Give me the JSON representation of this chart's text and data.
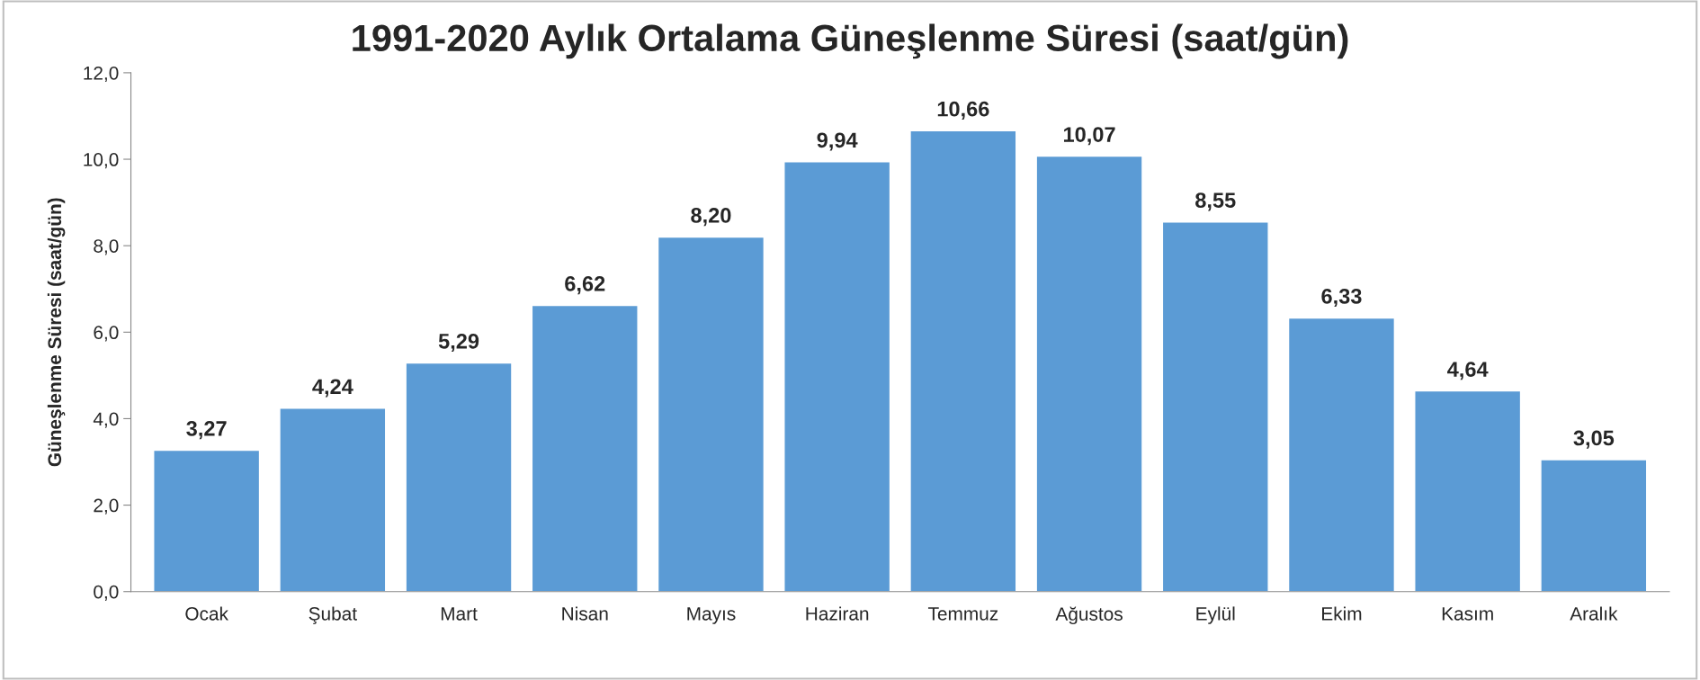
{
  "chart_data": {
    "type": "bar",
    "title": "1991-2020 Aylık Ortalama Güneşlenme Süresi (saat/gün)",
    "ylabel": "Güneşlenme Süresi (saat/gün)",
    "categories": [
      "Ocak",
      "Şubat",
      "Mart",
      "Nisan",
      "Mayıs",
      "Haziran",
      "Temmuz",
      "Ağustos",
      "Eylül",
      "Ekim",
      "Kasım",
      "Aralık"
    ],
    "values": [
      3.27,
      4.24,
      5.29,
      6.62,
      8.2,
      9.94,
      10.66,
      10.07,
      8.55,
      6.33,
      4.64,
      3.05
    ],
    "value_labels": [
      "3,27",
      "4,24",
      "5,29",
      "6,62",
      "8,20",
      "9,94",
      "10,66",
      "10,07",
      "8,55",
      "6,33",
      "4,64",
      "3,05"
    ],
    "color": "#5b9bd5",
    "ylim": [
      0,
      12
    ],
    "yticks": [
      {
        "value": 0,
        "label": "0,0"
      },
      {
        "value": 2,
        "label": "2,0"
      },
      {
        "value": 4,
        "label": "4,0"
      },
      {
        "value": 6,
        "label": "6,0"
      },
      {
        "value": 8,
        "label": "8,0"
      },
      {
        "value": 10,
        "label": "10,0"
      },
      {
        "value": 12,
        "label": "12,0"
      }
    ],
    "grid": false
  }
}
